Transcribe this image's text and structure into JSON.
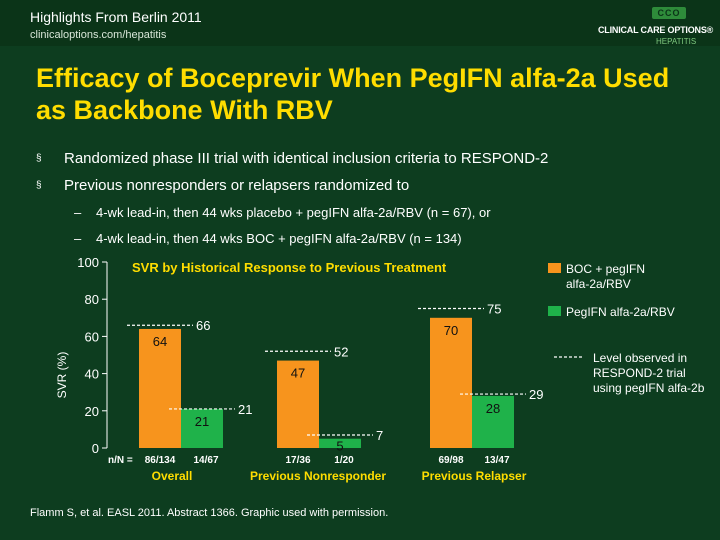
{
  "header": {
    "title": "Highlights From Berlin 2011",
    "url": "clinicaloptions.com/hepatitis",
    "logo_letters": "CCO",
    "logo_name": "CLINICAL CARE OPTIONS®",
    "logo_sub": "HEPATITIS"
  },
  "slide": {
    "title": "Efficacy of Boceprevir When PegIFN alfa-2a Used as Backbone With RBV",
    "bullets": [
      {
        "mark": "§",
        "text": "Randomized phase III trial with identical inclusion criteria to RESPOND-2"
      },
      {
        "mark": "§",
        "text": "Previous nonresponders or relapsers randomized to"
      }
    ],
    "subbullets": [
      {
        "mark": "–",
        "text": "4-wk lead-in, then 44 wks placebo + pegIFN alfa-2a/RBV (n = 67), or"
      },
      {
        "mark": "–",
        "text": "4-wk lead-in, then 44 wks BOC + pegIFN alfa-2a/RBV (n = 134)"
      }
    ],
    "footnote": "Flamm S, et al. EASL 2011. Abstract 1366. Graphic used with permission."
  },
  "colors": {
    "background": "#0d3d1f",
    "title": "#ffdd00",
    "boc_bar": "#f7941d",
    "peg_bar": "#1fb24a",
    "chart_title": "#ffdd00"
  },
  "chart_data": {
    "type": "bar",
    "title": "SVR by Historical Response to Previous Treatment",
    "xlabel": "",
    "ylabel": "SVR (%)",
    "ylim": [
      0,
      100
    ],
    "yticks": [
      0,
      20,
      40,
      60,
      80,
      100
    ],
    "grid": false,
    "legend_position": "right",
    "nN_label": "n/N =",
    "categories": [
      "Overall",
      "Previous Nonresponder",
      "Previous Relapser"
    ],
    "series": [
      {
        "name": "BOC + pegIFN alfa-2a/RBV",
        "values": [
          64,
          47,
          70
        ],
        "nN": [
          "86/134",
          "17/36",
          "69/98"
        ]
      },
      {
        "name": "PegIFN alfa-2a/RBV",
        "values": [
          21,
          5,
          28
        ],
        "nN": [
          "14/67",
          "1/20",
          "13/47"
        ]
      }
    ],
    "reference_lines": {
      "name": "Level observed in RESPOND-2 trial using pegIFN alfa-2b",
      "boc_values": [
        66,
        52,
        75
      ],
      "peg_values": [
        21,
        7,
        29
      ]
    }
  }
}
